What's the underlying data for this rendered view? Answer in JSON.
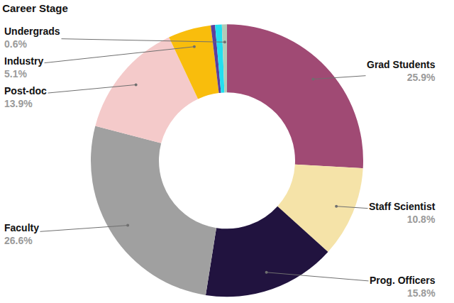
{
  "chart_data": {
    "type": "pie",
    "title": "Career Stage",
    "categories": [
      "Grad Students",
      "Staff Scientist",
      "Prog. Officers",
      "Faculty",
      "Post-doc",
      "Industry",
      null,
      null,
      "Undergrads"
    ],
    "values": [
      25.9,
      10.8,
      15.8,
      26.6,
      13.9,
      5.1,
      0.5,
      0.8,
      0.6
    ],
    "value_labels": [
      "25.9%",
      "10.8%",
      "15.8%",
      "26.6%",
      "13.9%",
      "5.1%",
      null,
      null,
      "0.6%"
    ],
    "colors": [
      "#a04a74",
      "#f5e3a8",
      "#21133f",
      "#a0a0a0",
      "#f4caca",
      "#f9bd0c",
      "#5a3f9e",
      "#22dff0",
      "#b3cbb8"
    ],
    "data_labels": true
  }
}
